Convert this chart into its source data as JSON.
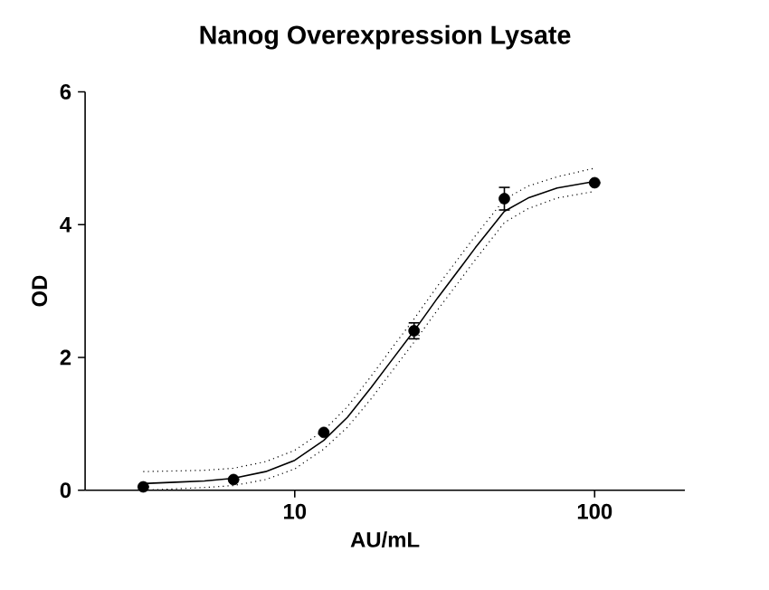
{
  "chart_data": {
    "type": "scatter",
    "title": "Nanog Overexpression Lysate",
    "xlabel": "AU/mL",
    "ylabel": "OD",
    "log": "x",
    "xlim": [
      2,
      200
    ],
    "xticks": [
      10,
      100
    ],
    "ylim": [
      0,
      6
    ],
    "yticks": [
      0,
      2,
      4,
      6
    ],
    "grid": false,
    "series": [
      {
        "color": "#000000",
        "marker": "circle",
        "x": [
          3.125,
          6.25,
          12.5,
          25,
          50,
          100
        ],
        "values": [
          0.05,
          0.16,
          0.87,
          2.4,
          4.39,
          4.63
        ],
        "errors": [
          null,
          null,
          null,
          0.12,
          0.17,
          null
        ]
      },
      {
        "type": "line",
        "color": "#000000",
        "marker": "none",
        "line_style": "solid",
        "x": [
          3.125,
          4,
          5,
          6.25,
          8,
          10,
          12.5,
          15,
          18,
          21,
          25,
          30,
          35,
          40,
          50,
          60,
          75,
          100
        ],
        "values": [
          0.1,
          0.12,
          0.14,
          0.18,
          0.28,
          0.45,
          0.75,
          1.1,
          1.55,
          1.95,
          2.4,
          2.9,
          3.3,
          3.65,
          4.2,
          4.4,
          4.55,
          4.65
        ]
      },
      {
        "type": "line",
        "color": "#000000",
        "marker": "none",
        "line_style": "dotted",
        "x": [
          3.125,
          4,
          5,
          6.25,
          8,
          10,
          12.5,
          15,
          18,
          21,
          25,
          30,
          35,
          40,
          50,
          60,
          75,
          100
        ],
        "values": [
          0.0,
          0.02,
          0.04,
          0.07,
          0.16,
          0.32,
          0.62,
          0.95,
          1.38,
          1.78,
          2.23,
          2.72,
          3.12,
          3.47,
          4.03,
          4.24,
          4.4,
          4.5
        ]
      },
      {
        "type": "line",
        "color": "#000000",
        "marker": "none",
        "line_style": "dotted",
        "x": [
          3.125,
          4,
          5,
          6.25,
          8,
          10,
          12.5,
          15,
          18,
          21,
          25,
          30,
          35,
          40,
          50,
          60,
          75,
          100
        ],
        "values": [
          0.28,
          0.29,
          0.3,
          0.33,
          0.43,
          0.6,
          0.9,
          1.26,
          1.72,
          2.13,
          2.58,
          3.08,
          3.48,
          3.83,
          4.38,
          4.58,
          4.72,
          4.85
        ]
      }
    ]
  }
}
